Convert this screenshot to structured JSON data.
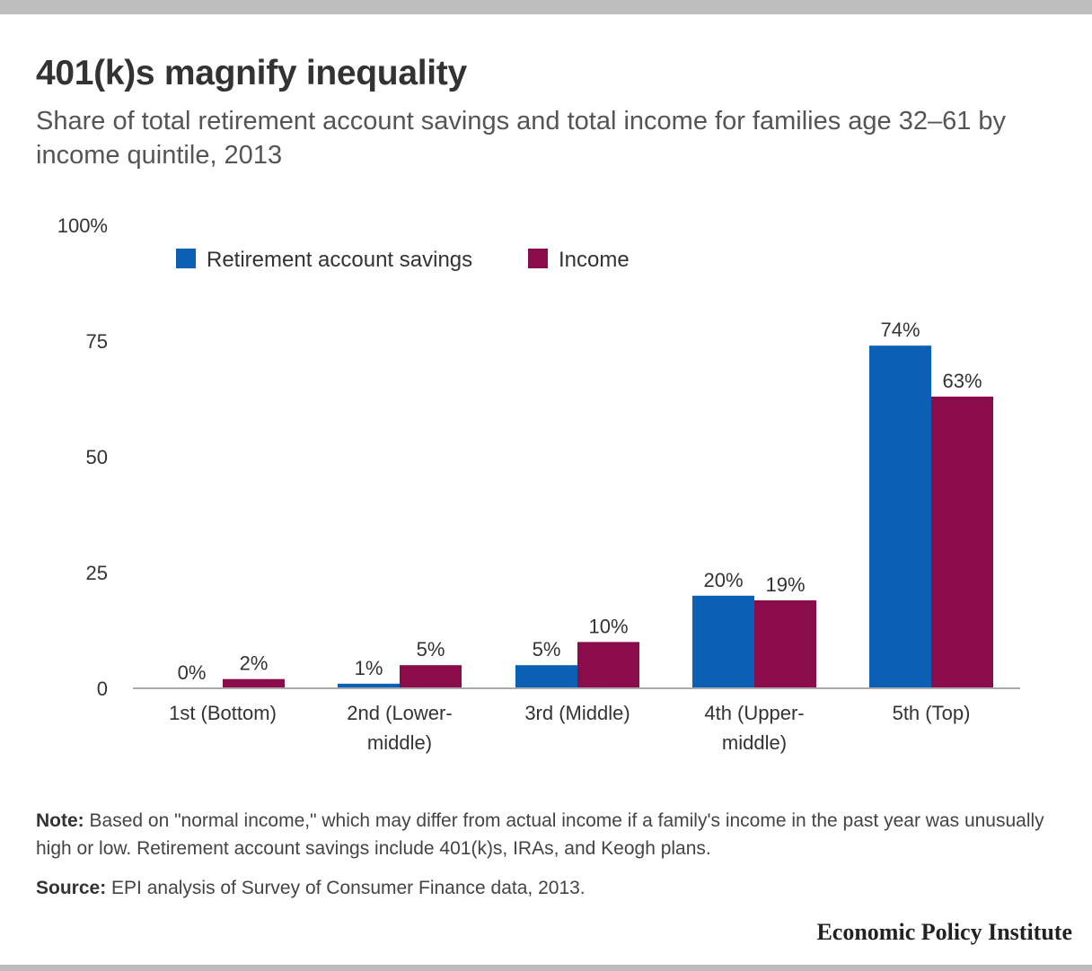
{
  "header": {
    "title": "401(k)s magnify inequality",
    "subtitle": "Share of total retirement account savings and total income for families age 32–61 by income quintile, 2013"
  },
  "chart_data": {
    "type": "bar",
    "categories": [
      [
        "1st (Bottom)"
      ],
      [
        "2nd (Lower-",
        "middle)"
      ],
      [
        "3rd (Middle)"
      ],
      [
        "4th (Upper-",
        "middle)"
      ],
      [
        "5th (Top)"
      ]
    ],
    "series": [
      {
        "name": "Retirement account savings",
        "color": "#0b5fb5",
        "values": [
          0,
          1,
          5,
          20,
          74
        ],
        "labels": [
          "0%",
          "1%",
          "5%",
          "20%",
          "74%"
        ]
      },
      {
        "name": "Income",
        "color": "#8a0c4b",
        "values": [
          2,
          5,
          10,
          19,
          63
        ],
        "labels": [
          "2%",
          "5%",
          "10%",
          "19%",
          "63%"
        ]
      }
    ],
    "yticks": [
      {
        "value": 0,
        "label": "0"
      },
      {
        "value": 25,
        "label": "25"
      },
      {
        "value": 50,
        "label": "50"
      },
      {
        "value": 75,
        "label": "75"
      },
      {
        "value": 100,
        "label": "100%"
      }
    ],
    "ylim": [
      0,
      100
    ],
    "grid": false,
    "legend_position": "top-left"
  },
  "footer": {
    "note_label": "Note:",
    "note_text": " Based on \"normal income,\" which may differ from actual income if a family's income in the past year was unusually high or low. Retirement account savings include 401(k)s, IRAs, and Keogh plans.",
    "source_label": "Source:",
    "source_text": " EPI analysis of  Survey of Consumer Finance data, 2013.",
    "brand": "Economic Policy Institute"
  }
}
